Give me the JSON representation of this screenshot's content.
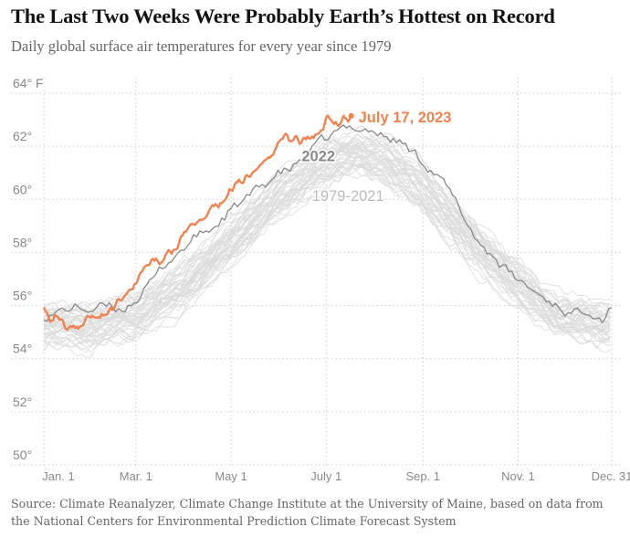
{
  "header": {
    "title": "The Last Two Weeks Were Probably Earth’s Hottest on Record",
    "subtitle": "Daily global surface air temperatures for every year since 1979"
  },
  "source": {
    "line1": "Source: Climate Reanalyzer, Climate Change Institute at the University of Maine, based on data from",
    "line2": "the National Centers for Environmental Prediction Climate Forecast System"
  },
  "colors": {
    "highlight": "#f0834f",
    "year2022": "#888888",
    "historical": "#dcdcdc",
    "grid": "#cccccc",
    "axis_text": "#888888"
  },
  "chart_data": {
    "type": "line",
    "title": "The Last Two Weeks Were Probably Earth’s Hottest on Record",
    "subtitle": "Daily global surface air temperatures for every year since 1979",
    "xlabel": "",
    "ylabel": "",
    "ylim": [
      50,
      64
    ],
    "xlim": [
      1,
      365
    ],
    "grid": true,
    "y_unit": "° F",
    "y_ticks": [
      {
        "value": 50,
        "label": "50°"
      },
      {
        "value": 52,
        "label": "52°"
      },
      {
        "value": 54,
        "label": "54°"
      },
      {
        "value": 56,
        "label": "56°"
      },
      {
        "value": 58,
        "label": "58°"
      },
      {
        "value": 60,
        "label": "60°"
      },
      {
        "value": 62,
        "label": "62°"
      },
      {
        "value": 64,
        "label": "64° F"
      }
    ],
    "x_ticks": [
      {
        "day": 1,
        "label": "Jan. 1"
      },
      {
        "day": 60,
        "label": "Mar. 1"
      },
      {
        "day": 121,
        "label": "May 1"
      },
      {
        "day": 182,
        "label": "July 1"
      },
      {
        "day": 244,
        "label": "Sep. 1"
      },
      {
        "day": 305,
        "label": "Nov. 1"
      },
      {
        "day": 365,
        "label": "Dec. 31"
      }
    ],
    "annotations": [
      {
        "text": "July 17, 2023",
        "series": "2023"
      },
      {
        "text": "2022",
        "series": "2022"
      },
      {
        "text": "1979-2021",
        "series": "1979-2021"
      }
    ],
    "series": [
      {
        "name": "2023",
        "color": "#f0834f",
        "x": [
          1,
          5,
          10,
          15,
          20,
          25,
          30,
          35,
          40,
          45,
          50,
          55,
          60,
          65,
          70,
          75,
          80,
          85,
          90,
          95,
          100,
          105,
          110,
          115,
          120,
          125,
          130,
          135,
          140,
          145,
          150,
          155,
          160,
          162,
          165,
          170,
          175,
          180,
          182,
          185,
          190,
          193,
          196,
          198
        ],
        "y": [
          55.7,
          55.2,
          55.4,
          54.9,
          55.0,
          54.9,
          55.3,
          55.3,
          55.4,
          55.5,
          55.9,
          56.3,
          56.5,
          57.0,
          57.4,
          57.3,
          57.8,
          57.7,
          58.3,
          58.6,
          58.9,
          59.1,
          59.5,
          59.5,
          60.0,
          60.2,
          60.5,
          60.6,
          61.0,
          61.2,
          61.5,
          62.1,
          61.8,
          61.9,
          61.8,
          62.0,
          62.1,
          62.4,
          62.9,
          62.8,
          62.5,
          62.8,
          62.6,
          62.8
        ]
      },
      {
        "name": "2022",
        "color": "#888888",
        "x": [
          1,
          10,
          20,
          30,
          40,
          50,
          60,
          70,
          80,
          90,
          100,
          110,
          120,
          130,
          140,
          150,
          160,
          170,
          180,
          190,
          200,
          210,
          220,
          230,
          240,
          250,
          260,
          270,
          280,
          290,
          300,
          310,
          320,
          330,
          340,
          350,
          360,
          365
        ],
        "y": [
          55.3,
          55.4,
          55.6,
          55.5,
          55.6,
          55.5,
          55.9,
          56.5,
          57.3,
          57.8,
          58.3,
          58.6,
          59.2,
          59.6,
          60.1,
          60.6,
          60.8,
          61.4,
          61.8,
          62.2,
          62.4,
          62.3,
          62.0,
          61.8,
          61.3,
          60.8,
          60.0,
          59.0,
          58.0,
          57.5,
          56.8,
          56.4,
          56.0,
          55.7,
          55.3,
          55.6,
          55.2,
          55.7
        ]
      },
      {
        "name": "1979-2021",
        "color": "#dcdcdc",
        "note": "43 yearly traces forming a band",
        "band_x": [
          1,
          30,
          60,
          90,
          120,
          150,
          180,
          200,
          220,
          240,
          270,
          300,
          330,
          365
        ],
        "band_low": [
          54.0,
          54.0,
          54.3,
          55.4,
          57.1,
          58.8,
          60.1,
          60.6,
          60.2,
          59.3,
          57.4,
          55.8,
          54.6,
          54.0
        ],
        "band_high": [
          55.8,
          55.7,
          56.2,
          57.3,
          58.8,
          60.6,
          61.8,
          62.3,
          62.0,
          61.3,
          59.4,
          57.6,
          56.0,
          55.8
        ]
      }
    ]
  }
}
